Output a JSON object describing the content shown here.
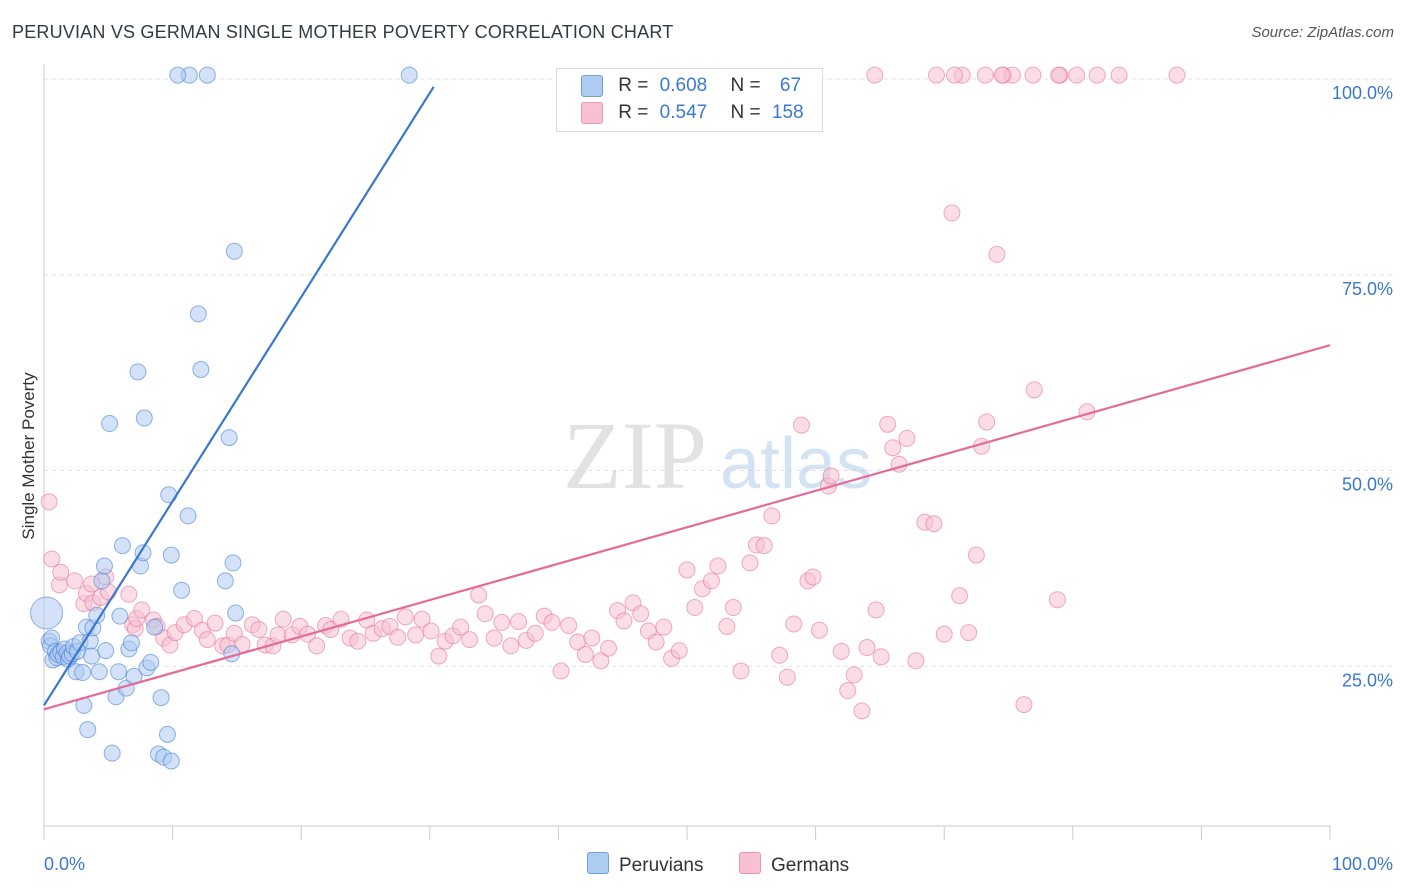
{
  "header": {
    "title": "PERUVIAN VS GERMAN SINGLE MOTHER POVERTY CORRELATION CHART",
    "source": "Source: ZipAtlas.com"
  },
  "watermark": {
    "zip": "ZIP",
    "atlas": "atlas"
  },
  "legend": {
    "r_label": "R =",
    "n_label": "N =",
    "items": [
      {
        "r": "0.608",
        "n": "67",
        "fill": "#aecbf2",
        "stroke": "#6ea0de"
      },
      {
        "r": "0.547",
        "n": "158",
        "fill": "#f8c1d2",
        "stroke": "#ec93b1"
      }
    ]
  },
  "bottom_legend": [
    "Peruvians",
    "Germans"
  ],
  "chart_data": {
    "type": "scatter",
    "title": "PERUVIAN VS GERMAN SINGLE MOTHER POVERTY CORRELATION CHART",
    "xlabel": "",
    "ylabel": "Single Mother Poverty",
    "xlim": [
      0,
      100
    ],
    "ylim": [
      0,
      105
    ],
    "x_tick_labels": [
      "0.0%",
      "100.0%"
    ],
    "y_ticks": [
      25,
      50,
      75,
      100
    ],
    "y_tick_labels": [
      "25.0%",
      "50.0%",
      "75.0%",
      "100.0%"
    ],
    "grid": true,
    "legend_position": "top-center",
    "series": [
      {
        "name": "Peruvians",
        "color": "#3a78d0",
        "fill": "#aecbf2",
        "trend": {
          "x": [
            0,
            30.3
          ],
          "y": [
            20.0,
            99.0
          ]
        },
        "points": [
          [
            0.2,
            31.8
          ],
          [
            0.4,
            28.2
          ],
          [
            0.5,
            27.6
          ],
          [
            0.6,
            28.6
          ],
          [
            0.7,
            25.8
          ],
          [
            0.9,
            26.9
          ],
          [
            1.0,
            26.1
          ],
          [
            1.1,
            26.5
          ],
          [
            1.3,
            26.8
          ],
          [
            1.5,
            26.2
          ],
          [
            1.6,
            27.2
          ],
          [
            1.8,
            26.7
          ],
          [
            1.9,
            25.9
          ],
          [
            2.0,
            26.3
          ],
          [
            2.2,
            26.6
          ],
          [
            2.3,
            27.5
          ],
          [
            2.5,
            24.3
          ],
          [
            2.6,
            26.9
          ],
          [
            2.8,
            28.0
          ],
          [
            3.0,
            24.2
          ],
          [
            3.1,
            20.0
          ],
          [
            3.3,
            30.0
          ],
          [
            3.4,
            16.9
          ],
          [
            3.6,
            28.2
          ],
          [
            3.7,
            26.3
          ],
          [
            3.8,
            29.9
          ],
          [
            4.1,
            31.5
          ],
          [
            4.3,
            24.3
          ],
          [
            4.5,
            35.9
          ],
          [
            4.7,
            37.8
          ],
          [
            4.8,
            27.0
          ],
          [
            5.1,
            56.0
          ],
          [
            5.3,
            13.9
          ],
          [
            5.6,
            21.1
          ],
          [
            5.8,
            24.3
          ],
          [
            5.9,
            31.4
          ],
          [
            6.1,
            40.4
          ],
          [
            6.4,
            22.2
          ],
          [
            6.6,
            27.2
          ],
          [
            6.8,
            28.0
          ],
          [
            7.0,
            23.7
          ],
          [
            7.3,
            62.6
          ],
          [
            7.5,
            37.8
          ],
          [
            7.7,
            39.5
          ],
          [
            7.8,
            56.7
          ],
          [
            8.0,
            24.8
          ],
          [
            8.3,
            25.5
          ],
          [
            8.6,
            30.0
          ],
          [
            8.9,
            13.8
          ],
          [
            9.1,
            21.0
          ],
          [
            9.3,
            13.4
          ],
          [
            9.6,
            16.3
          ],
          [
            9.9,
            12.9
          ],
          [
            9.7,
            46.9
          ],
          [
            9.9,
            39.2
          ],
          [
            10.7,
            34.7
          ],
          [
            11.2,
            44.2
          ],
          [
            12.0,
            70.0
          ],
          [
            12.2,
            62.9
          ],
          [
            11.3,
            100.5
          ],
          [
            12.7,
            100.5
          ],
          [
            10.4,
            100.5
          ],
          [
            14.7,
            38.2
          ],
          [
            14.6,
            26.6
          ],
          [
            14.9,
            31.8
          ],
          [
            14.1,
            35.9
          ],
          [
            14.4,
            54.2
          ],
          [
            14.8,
            78.0
          ],
          [
            28.4,
            100.5
          ]
        ]
      },
      {
        "name": "Germans",
        "color": "#e56a96",
        "fill": "#f8c1d2",
        "trend": {
          "x": [
            0,
            100
          ],
          "y": [
            19.5,
            66.0
          ]
        },
        "points": [
          [
            0.4,
            46.0
          ],
          [
            0.6,
            38.7
          ],
          [
            1.2,
            35.4
          ],
          [
            1.3,
            37.0
          ],
          [
            2.4,
            35.9
          ],
          [
            3.1,
            33.0
          ],
          [
            3.3,
            34.3
          ],
          [
            3.7,
            35.5
          ],
          [
            3.8,
            33.1
          ],
          [
            4.4,
            33.8
          ],
          [
            4.8,
            36.4
          ],
          [
            5.0,
            34.5
          ],
          [
            6.6,
            34.2
          ],
          [
            6.9,
            30.3
          ],
          [
            7.1,
            29.8
          ],
          [
            7.2,
            31.1
          ],
          [
            7.6,
            32.2
          ],
          [
            8.5,
            30.9
          ],
          [
            8.8,
            30.1
          ],
          [
            9.3,
            28.6
          ],
          [
            9.8,
            27.7
          ],
          [
            10.2,
            29.3
          ],
          [
            10.9,
            30.3
          ],
          [
            11.7,
            31.1
          ],
          [
            12.3,
            29.6
          ],
          [
            12.7,
            28.4
          ],
          [
            13.3,
            30.5
          ],
          [
            13.9,
            27.6
          ],
          [
            14.3,
            27.7
          ],
          [
            14.8,
            29.2
          ],
          [
            15.4,
            27.8
          ],
          [
            16.2,
            30.3
          ],
          [
            16.7,
            29.7
          ],
          [
            17.2,
            27.7
          ],
          [
            17.8,
            27.6
          ],
          [
            18.2,
            29.0
          ],
          [
            18.6,
            31.0
          ],
          [
            19.3,
            29.0
          ],
          [
            19.9,
            30.1
          ],
          [
            20.5,
            29.1
          ],
          [
            21.2,
            27.6
          ],
          [
            21.9,
            30.2
          ],
          [
            22.3,
            29.7
          ],
          [
            23.1,
            31.0
          ],
          [
            23.8,
            28.6
          ],
          [
            24.4,
            28.2
          ],
          [
            25.1,
            30.9
          ],
          [
            25.6,
            29.2
          ],
          [
            26.3,
            29.8
          ],
          [
            26.9,
            30.1
          ],
          [
            27.5,
            28.7
          ],
          [
            28.1,
            31.3
          ],
          [
            28.9,
            29.0
          ],
          [
            29.4,
            31.0
          ],
          [
            30.1,
            29.5
          ],
          [
            30.7,
            26.3
          ],
          [
            31.2,
            28.2
          ],
          [
            31.8,
            28.9
          ],
          [
            32.4,
            30.0
          ],
          [
            33.1,
            28.4
          ],
          [
            33.8,
            34.1
          ],
          [
            34.3,
            31.7
          ],
          [
            35.0,
            28.6
          ],
          [
            35.6,
            30.6
          ],
          [
            36.3,
            27.6
          ],
          [
            36.9,
            30.7
          ],
          [
            37.5,
            28.3
          ],
          [
            38.2,
            29.2
          ],
          [
            38.9,
            31.4
          ],
          [
            39.5,
            30.6
          ],
          [
            40.2,
            24.4
          ],
          [
            40.8,
            30.2
          ],
          [
            41.5,
            28.1
          ],
          [
            42.1,
            26.5
          ],
          [
            42.6,
            28.6
          ],
          [
            43.3,
            25.7
          ],
          [
            43.9,
            27.3
          ],
          [
            44.6,
            32.1
          ],
          [
            45.1,
            30.8
          ],
          [
            45.8,
            33.1
          ],
          [
            46.4,
            31.7
          ],
          [
            47.0,
            29.5
          ],
          [
            47.6,
            28.1
          ],
          [
            48.2,
            30.0
          ],
          [
            48.8,
            26.0
          ],
          [
            49.4,
            27.0
          ],
          [
            50.0,
            37.3
          ],
          [
            50.6,
            32.5
          ],
          [
            51.2,
            34.9
          ],
          [
            51.9,
            35.9
          ],
          [
            52.4,
            37.8
          ],
          [
            53.1,
            30.1
          ],
          [
            53.6,
            32.5
          ],
          [
            54.2,
            24.4
          ],
          [
            54.9,
            38.2
          ],
          [
            55.4,
            40.5
          ],
          [
            56.0,
            40.4
          ],
          [
            56.6,
            44.2
          ],
          [
            57.2,
            26.4
          ],
          [
            57.8,
            23.6
          ],
          [
            58.3,
            30.4
          ],
          [
            58.9,
            55.8
          ],
          [
            59.4,
            35.9
          ],
          [
            59.8,
            36.4
          ],
          [
            60.3,
            29.6
          ],
          [
            61.0,
            48.0
          ],
          [
            61.2,
            49.3
          ],
          [
            62.0,
            26.9
          ],
          [
            62.5,
            21.9
          ],
          [
            63.0,
            23.9
          ],
          [
            63.6,
            19.3
          ],
          [
            64.0,
            27.4
          ],
          [
            64.7,
            32.2
          ],
          [
            65.1,
            26.2
          ],
          [
            65.6,
            55.9
          ],
          [
            66.0,
            52.9
          ],
          [
            66.5,
            50.8
          ],
          [
            67.1,
            54.1
          ],
          [
            67.8,
            25.7
          ],
          [
            68.5,
            43.4
          ],
          [
            69.2,
            43.2
          ],
          [
            70.0,
            29.1
          ],
          [
            70.6,
            82.9
          ],
          [
            71.2,
            34.0
          ],
          [
            71.9,
            29.3
          ],
          [
            72.5,
            39.2
          ],
          [
            72.9,
            53.1
          ],
          [
            73.3,
            56.2
          ],
          [
            74.1,
            77.6
          ],
          [
            76.2,
            20.1
          ],
          [
            77.0,
            60.3
          ],
          [
            78.8,
            33.5
          ],
          [
            81.1,
            57.5
          ],
          [
            64.6,
            100.5
          ],
          [
            69.4,
            100.5
          ],
          [
            71.4,
            100.5
          ],
          [
            73.2,
            100.5
          ],
          [
            74.6,
            100.5
          ],
          [
            75.3,
            100.5
          ],
          [
            76.9,
            100.5
          ],
          [
            79.0,
            100.5
          ],
          [
            80.3,
            100.5
          ],
          [
            81.9,
            100.5
          ],
          [
            83.6,
            100.5
          ],
          [
            88.1,
            100.5
          ],
          [
            74.5,
            100.5
          ],
          [
            78.9,
            100.5
          ],
          [
            70.8,
            100.5
          ]
        ]
      }
    ]
  }
}
